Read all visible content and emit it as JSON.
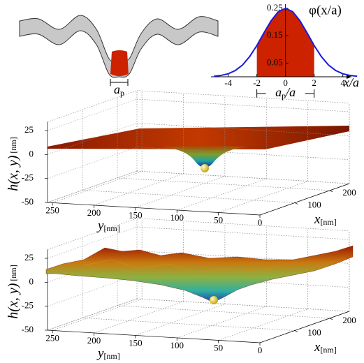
{
  "schematic": {
    "label": {
      "text": "a",
      "subscript": "p"
    }
  },
  "chart_data": [
    {
      "type": "line",
      "title": "φ(x/a)",
      "x_label": "x/a",
      "annotation": {
        "text": "a",
        "subscript": "p",
        "suffix": "/a"
      },
      "x": [
        -5,
        -4.5,
        -4,
        -3.5,
        -3,
        -2.5,
        -2,
        -1.5,
        -1,
        -0.5,
        0,
        0.5,
        1,
        1.5,
        2,
        2.5,
        3,
        3.5,
        4,
        4.5,
        5
      ],
      "series": [
        {
          "color": "#1a1add",
          "values": [
            0.002,
            0.005,
            0.011,
            0.023,
            0.043,
            0.074,
            0.114,
            0.161,
            0.205,
            0.238,
            0.25,
            0.238,
            0.205,
            0.161,
            0.114,
            0.074,
            0.043,
            0.023,
            0.011,
            0.005,
            0.002
          ]
        }
      ],
      "shade_range": [
        -2,
        2
      ],
      "shade_color": "#cc2200",
      "xlim": [
        -5.2,
        4.6
      ],
      "ylim": [
        0,
        0.26
      ],
      "xticks": [
        -4,
        -2,
        0,
        2,
        4
      ],
      "yticks": [
        0.05,
        0.15,
        0.25
      ]
    },
    {
      "type": "surface3d",
      "z_label": {
        "text": "h(x, y)",
        "unit": "[nm]"
      },
      "y_label": {
        "text": "y",
        "unit": "[nm]"
      },
      "x_label": {
        "text": "x",
        "unit": "[nm]"
      },
      "zlim": [
        -50,
        34
      ],
      "xlim": [
        0,
        256
      ],
      "ylim": [
        0,
        256
      ],
      "zticks": [
        25,
        0,
        -25,
        -50
      ],
      "yticks": [
        250,
        200,
        150,
        100,
        50,
        0
      ],
      "xticks": [
        100,
        200
      ]
    },
    {
      "type": "surface3d",
      "z_label": {
        "text": "h(x, y)",
        "unit": "[nm]"
      },
      "y_label": {
        "text": "y",
        "unit": "[nm]"
      },
      "x_label": {
        "text": "x",
        "unit": "[nm]"
      },
      "zlim": [
        -50,
        34
      ],
      "xlim": [
        0,
        256
      ],
      "ylim": [
        0,
        256
      ],
      "zticks": [
        25,
        0,
        -25,
        -50
      ],
      "yticks": [
        250,
        200,
        150,
        100,
        50,
        0
      ],
      "xticks": [
        100,
        200
      ]
    }
  ]
}
